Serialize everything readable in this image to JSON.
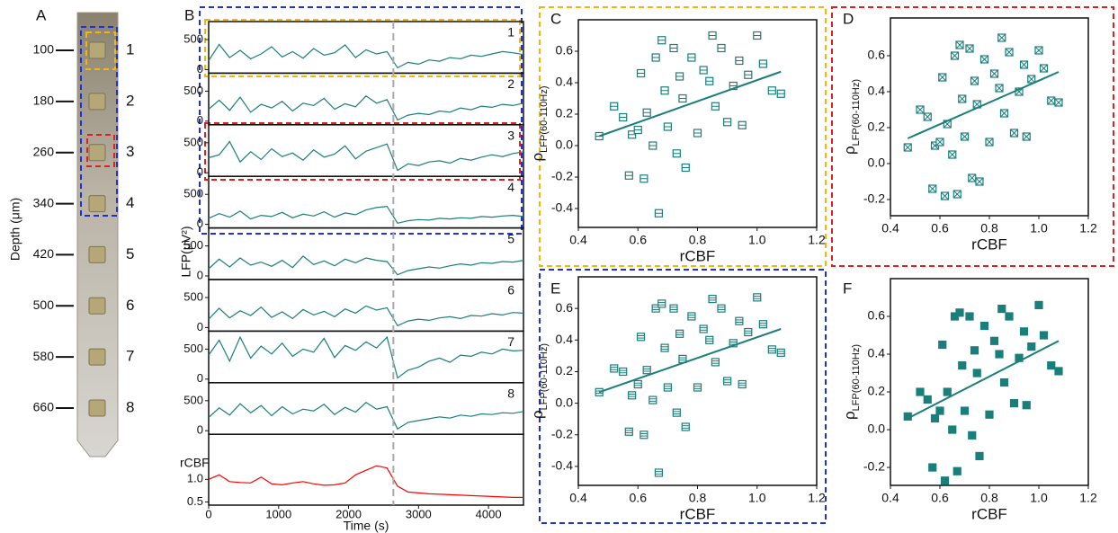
{
  "probe": {
    "label": "A",
    "ylabel": "Depth (μm)",
    "depths": [
      100,
      180,
      260,
      340,
      420,
      500,
      580,
      660
    ],
    "channels": [
      1,
      2,
      3,
      4,
      5,
      6,
      7,
      8
    ]
  },
  "chart_data": [
    {
      "type": "traces",
      "label": "B",
      "xlabel": "Time (s)",
      "ylabel": "LFP(μV²)",
      "x": [
        0,
        150,
        300,
        450,
        600,
        750,
        900,
        1050,
        1200,
        1350,
        1500,
        1650,
        1800,
        1950,
        2100,
        2250,
        2400,
        2550,
        2700,
        2850,
        3000,
        3150,
        3300,
        3450,
        3600,
        3750,
        3900,
        4050,
        4200,
        4350,
        4500
      ],
      "xlim": [
        0,
        4500
      ],
      "xticks": [
        0,
        1000,
        2000,
        3000,
        4000
      ],
      "event_time": 2640,
      "series": [
        {
          "name": "1",
          "color": "#1a7f7a",
          "ylim": [
            0,
            800
          ],
          "yticks": [
            0,
            500
          ],
          "values": [
            150,
            420,
            200,
            320,
            180,
            260,
            380,
            210,
            300,
            190,
            350,
            240,
            280,
            410,
            200,
            330,
            260,
            300,
            30,
            120,
            90,
            160,
            140,
            200,
            180,
            240,
            220,
            260,
            300,
            280,
            250
          ]
        },
        {
          "name": "2",
          "color": "#1a7f7a",
          "ylim": [
            0,
            800
          ],
          "yticks": [
            0,
            500
          ],
          "values": [
            200,
            350,
            180,
            400,
            150,
            280,
            220,
            330,
            170,
            300,
            260,
            380,
            200,
            290,
            240,
            420,
            300,
            360,
            20,
            100,
            130,
            110,
            170,
            150,
            220,
            190,
            250,
            230,
            280,
            260,
            300
          ]
        },
        {
          "name": "3",
          "color": "#1a7f7a",
          "ylim": [
            0,
            800
          ],
          "yticks": [
            0,
            500
          ],
          "values": [
            250,
            300,
            520,
            180,
            350,
            220,
            400,
            270,
            330,
            210,
            380,
            260,
            310,
            450,
            230,
            360,
            420,
            480,
            40,
            150,
            120,
            180,
            200,
            160,
            240,
            210,
            260,
            300,
            270,
            320,
            350
          ]
        },
        {
          "name": "4",
          "color": "#1a7f7a",
          "ylim": [
            0,
            800
          ],
          "yticks": [
            0,
            500
          ],
          "values": [
            100,
            180,
            120,
            220,
            90,
            150,
            130,
            200,
            110,
            170,
            140,
            210,
            120,
            190,
            160,
            240,
            280,
            300,
            20,
            60,
            80,
            70,
            100,
            90,
            110,
            100,
            130,
            120,
            140,
            150,
            130
          ]
        },
        {
          "name": "5",
          "color": "#1a7f7a",
          "ylim": [
            0,
            800
          ],
          "yticks": [
            0,
            500
          ],
          "values": [
            120,
            280,
            150,
            300,
            180,
            230,
            160,
            260,
            140,
            330,
            190,
            250,
            170,
            280,
            220,
            300,
            260,
            240,
            20,
            90,
            120,
            150,
            130,
            170,
            200,
            180,
            220,
            210,
            240,
            230,
            260
          ]
        },
        {
          "name": "6",
          "color": "#1a7f7a",
          "ylim": [
            0,
            800
          ],
          "yticks": [
            0,
            500
          ],
          "values": [
            140,
            320,
            160,
            280,
            200,
            340,
            170,
            260,
            150,
            300,
            210,
            270,
            180,
            310,
            240,
            360,
            290,
            330,
            30,
            110,
            140,
            120,
            160,
            180,
            150,
            200,
            190,
            230,
            210,
            250,
            240
          ]
        },
        {
          "name": "7",
          "color": "#1a7f7a",
          "ylim": [
            0,
            800
          ],
          "yticks": [
            0,
            500
          ],
          "values": [
            400,
            650,
            300,
            700,
            350,
            550,
            420,
            600,
            380,
            500,
            450,
            680,
            360,
            560,
            480,
            620,
            520,
            700,
            20,
            150,
            200,
            300,
            350,
            280,
            400,
            380,
            450,
            420,
            500,
            470,
            480
          ]
        },
        {
          "name": "8",
          "color": "#1a7f7a",
          "ylim": [
            0,
            800
          ],
          "yticks": [
            0,
            500
          ],
          "values": [
            220,
            380,
            260,
            450,
            300,
            420,
            250,
            400,
            280,
            360,
            330,
            440,
            270,
            390,
            310,
            470,
            360,
            400,
            30,
            140,
            170,
            200,
            230,
            210,
            260,
            240,
            280,
            270,
            300,
            290,
            320
          ]
        },
        {
          "name": "rCBF",
          "color": "#ff0000",
          "ylim": [
            0.45,
            1.9
          ],
          "yticks": [
            {
              "value": 1,
              "label": "1.0"
            },
            0.5
          ],
          "values": [
            1.0,
            1.1,
            0.95,
            0.93,
            0.92,
            1.05,
            0.9,
            0.88,
            0.92,
            0.95,
            0.9,
            0.87,
            0.88,
            0.92,
            1.1,
            1.2,
            1.3,
            1.25,
            0.85,
            0.72,
            0.7,
            0.68,
            0.67,
            0.66,
            0.65,
            0.64,
            0.63,
            0.62,
            0.61,
            0.6,
            0.6
          ]
        }
      ]
    },
    {
      "type": "scatter",
      "label": "C",
      "color": "#1a7f7a",
      "marker": "square-minus",
      "frame_color": "#f5b800",
      "xlabel": "rCBF",
      "ylabel": "ρ",
      "ylabel_sub": "LFP(60-110Hz)",
      "xlim": [
        0.4,
        1.2
      ],
      "xticks": [
        0.4,
        0.6,
        0.8,
        {
          "value": 1,
          "label": "1.0"
        },
        1.2
      ],
      "ylim": [
        -0.52,
        0.8
      ],
      "yticks": [
        -0.4,
        -0.2,
        {
          "value": 0,
          "label": "0.0"
        },
        0.2,
        0.4,
        0.6
      ],
      "x": [
        0.47,
        0.52,
        0.55,
        0.57,
        0.58,
        0.6,
        0.61,
        0.62,
        0.63,
        0.65,
        0.66,
        0.67,
        0.68,
        0.69,
        0.7,
        0.72,
        0.73,
        0.74,
        0.75,
        0.76,
        0.78,
        0.8,
        0.82,
        0.84,
        0.85,
        0.86,
        0.88,
        0.9,
        0.92,
        0.94,
        0.95,
        0.97,
        1.0,
        1.02,
        1.05,
        1.08
      ],
      "y": [
        0.06,
        0.25,
        0.18,
        -0.19,
        0.07,
        0.1,
        0.46,
        -0.21,
        0.21,
        0.0,
        0.56,
        -0.43,
        0.67,
        0.35,
        0.12,
        0.62,
        -0.05,
        0.44,
        0.3,
        -0.14,
        0.56,
        0.08,
        0.48,
        0.41,
        0.7,
        0.25,
        0.62,
        0.15,
        0.38,
        0.54,
        0.13,
        0.45,
        0.7,
        0.52,
        0.35,
        0.33
      ],
      "fit": {
        "x": [
          0.47,
          1.08
        ],
        "y": [
          0.06,
          0.47
        ]
      }
    },
    {
      "type": "scatter",
      "label": "D",
      "color": "#1a7f7a",
      "marker": "square-x",
      "frame_color": "#e02020",
      "xlabel": "rCBF",
      "ylabel": "ρ",
      "ylabel_sub": "LFP(60-110Hz)",
      "xlim": [
        0.4,
        1.2
      ],
      "xticks": [
        0.4,
        0.6,
        0.8,
        {
          "value": 1,
          "label": "1.0"
        },
        1.2
      ],
      "ylim": [
        -0.29,
        0.81
      ],
      "yticks": [
        -0.2,
        {
          "value": 0,
          "label": "0.0"
        },
        0.2,
        0.4,
        0.6
      ],
      "x": [
        0.47,
        0.52,
        0.55,
        0.57,
        0.58,
        0.6,
        0.61,
        0.62,
        0.63,
        0.65,
        0.66,
        0.67,
        0.68,
        0.69,
        0.7,
        0.72,
        0.73,
        0.74,
        0.75,
        0.76,
        0.78,
        0.8,
        0.82,
        0.84,
        0.85,
        0.86,
        0.88,
        0.9,
        0.92,
        0.94,
        0.95,
        0.97,
        1.0,
        1.02,
        1.05,
        1.08
      ],
      "y": [
        0.09,
        0.3,
        0.26,
        -0.14,
        0.1,
        0.12,
        0.48,
        -0.18,
        0.22,
        0.05,
        0.6,
        -0.17,
        0.66,
        0.36,
        0.15,
        0.64,
        -0.08,
        0.46,
        0.33,
        -0.1,
        0.58,
        0.12,
        0.5,
        0.42,
        0.7,
        0.28,
        0.62,
        0.17,
        0.4,
        0.55,
        0.15,
        0.47,
        0.63,
        0.53,
        0.35,
        0.34
      ],
      "fit": {
        "x": [
          0.47,
          1.08
        ],
        "y": [
          0.14,
          0.51
        ]
      }
    },
    {
      "type": "scatter",
      "label": "E",
      "color": "#1a7f7a",
      "marker": "square-equal",
      "frame_color": "#1f2fe0",
      "xlabel": "rCBF",
      "ylabel": "ρ",
      "ylabel_sub": "LFP(60-110Hz)",
      "xlim": [
        0.4,
        1.2
      ],
      "xticks": [
        0.4,
        0.6,
        0.8,
        {
          "value": 1,
          "label": "1.0"
        },
        1.2
      ],
      "ylim": [
        -0.52,
        0.8
      ],
      "yticks": [
        -0.4,
        -0.2,
        {
          "value": 0,
          "label": "0.0"
        },
        0.2,
        0.4,
        0.6
      ],
      "x": [
        0.47,
        0.52,
        0.55,
        0.57,
        0.58,
        0.6,
        0.61,
        0.62,
        0.63,
        0.65,
        0.66,
        0.67,
        0.68,
        0.69,
        0.7,
        0.72,
        0.73,
        0.74,
        0.75,
        0.76,
        0.78,
        0.8,
        0.82,
        0.84,
        0.85,
        0.86,
        0.88,
        0.9,
        0.92,
        0.94,
        0.95,
        0.97,
        1.0,
        1.02,
        1.05,
        1.08
      ],
      "y": [
        0.07,
        0.22,
        0.2,
        -0.18,
        0.05,
        0.12,
        0.42,
        -0.2,
        0.21,
        0.02,
        0.6,
        -0.44,
        0.63,
        0.35,
        0.1,
        0.6,
        -0.06,
        0.44,
        0.28,
        -0.15,
        0.55,
        0.1,
        0.47,
        0.4,
        0.66,
        0.26,
        0.6,
        0.14,
        0.38,
        0.52,
        0.12,
        0.45,
        0.67,
        0.5,
        0.34,
        0.32
      ],
      "fit": {
        "x": [
          0.47,
          1.08
        ],
        "y": [
          0.07,
          0.47
        ]
      }
    },
    {
      "type": "scatter",
      "label": "F",
      "color": "#1a7f7a",
      "marker": "square-filled",
      "xlabel": "rCBF",
      "ylabel": "ρ",
      "ylabel_sub": "LFP(60-110Hz)",
      "xlim": [
        0.4,
        1.2
      ],
      "xticks": [
        0.4,
        0.6,
        0.8,
        {
          "value": 1,
          "label": "1.0"
        },
        1.2
      ],
      "ylim": [
        -0.295,
        0.8
      ],
      "yticks": [
        -0.2,
        {
          "value": 0,
          "label": "0.0"
        },
        0.2,
        0.4,
        0.6
      ],
      "x": [
        0.47,
        0.52,
        0.55,
        0.57,
        0.58,
        0.6,
        0.61,
        0.62,
        0.63,
        0.65,
        0.66,
        0.67,
        0.68,
        0.69,
        0.7,
        0.72,
        0.73,
        0.74,
        0.75,
        0.76,
        0.78,
        0.8,
        0.82,
        0.84,
        0.85,
        0.86,
        0.88,
        0.9,
        0.92,
        0.94,
        0.95,
        0.97,
        1.0,
        1.02,
        1.05,
        1.08
      ],
      "y": [
        0.07,
        0.2,
        0.16,
        -0.2,
        0.06,
        0.1,
        0.45,
        -0.27,
        0.2,
        0.0,
        0.6,
        -0.22,
        0.62,
        0.34,
        0.1,
        0.6,
        -0.03,
        0.42,
        0.3,
        -0.14,
        0.55,
        0.08,
        0.47,
        0.4,
        0.64,
        0.25,
        0.6,
        0.14,
        0.38,
        0.52,
        0.13,
        0.44,
        0.66,
        0.5,
        0.34,
        0.31
      ],
      "fit": {
        "x": [
          0.47,
          1.08
        ],
        "y": [
          0.06,
          0.47
        ]
      }
    }
  ]
}
